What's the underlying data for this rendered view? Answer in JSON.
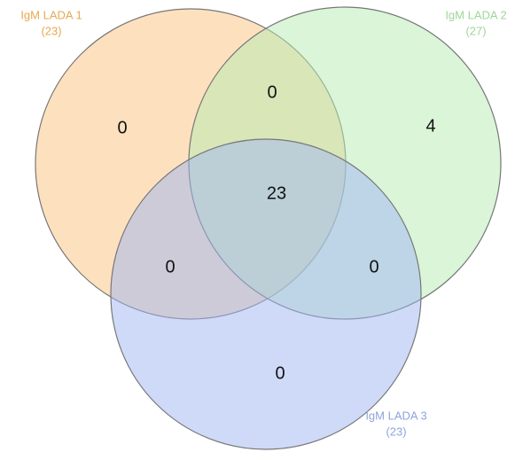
{
  "sets": [
    {
      "label": "IgM LADA 1",
      "count": "(23)"
    },
    {
      "label": "IgM LADA 2",
      "count": "(27)"
    },
    {
      "label": "IgM LADA 3",
      "count": "(23)"
    }
  ],
  "regions": {
    "only_1": "0",
    "only_2": "4",
    "only_3": "0",
    "1_and_2": "0",
    "1_and_3": "0",
    "2_and_3": "0",
    "all": "23"
  }
}
